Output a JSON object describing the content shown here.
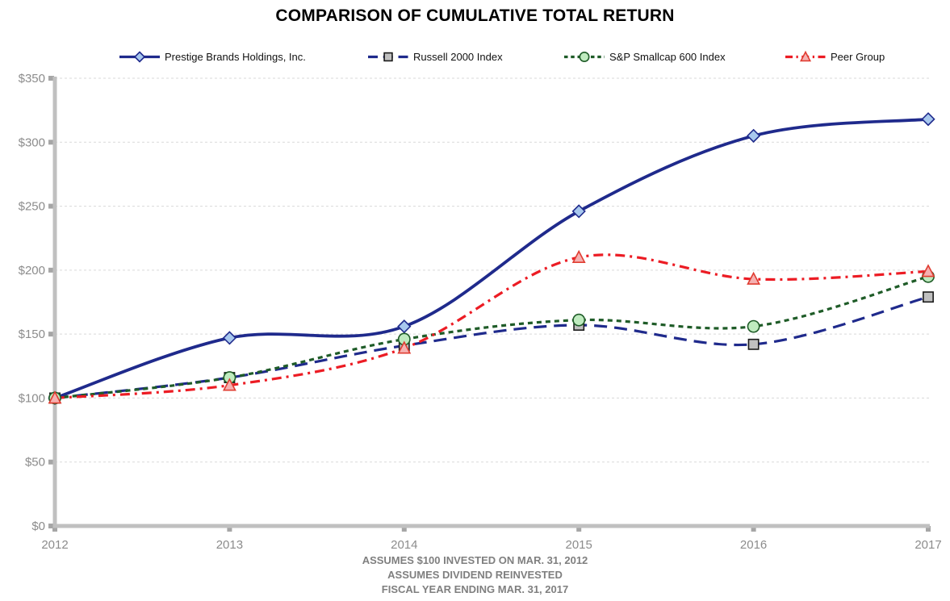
{
  "title": "COMPARISON OF CUMULATIVE TOTAL RETURN",
  "footer": {
    "line1": "ASSUMES $100 INVESTED ON MAR. 31, 2012",
    "line2": "ASSUMES DIVIDEND REINVESTED",
    "line3": "FISCAL YEAR ENDING MAR. 31, 2017"
  },
  "axis": {
    "y_tick_labels": [
      "$0",
      "$50",
      "$100",
      "$150",
      "$200",
      "$250",
      "$300",
      "$350"
    ],
    "x_tick_labels": [
      "2012",
      "2013",
      "2014",
      "2015",
      "2016",
      "2017"
    ],
    "label_color": "#8C8C8C",
    "axis_color": "#C0C0C0",
    "tick_color": "#A6A6A6",
    "gridline_color": "#D9D9D9"
  },
  "chart_data": {
    "type": "line",
    "title": "COMPARISON OF CUMULATIVE TOTAL RETURN",
    "x": [
      2012,
      2013,
      2014,
      2015,
      2016,
      2017
    ],
    "xlabel": "",
    "ylabel": "",
    "ylim": [
      0,
      350
    ],
    "y_tick_step": 50,
    "grid": true,
    "legend_position": "top",
    "smooth_lines": true,
    "series": [
      {
        "name": "Prestige Brands Holdings, Inc.",
        "values": [
          100,
          147,
          156,
          246,
          305,
          318
        ],
        "color": "#1F2A8C",
        "dash": "",
        "marker": "diamond",
        "marker_fill": "#A8C8EE",
        "marker_stroke": "#1F2A8C"
      },
      {
        "name": "Russell 2000 Index",
        "values": [
          100,
          116,
          141,
          157,
          142,
          179
        ],
        "color": "#1F2A8C",
        "dash": "16 9",
        "marker": "square",
        "marker_fill": "#C0C0C0",
        "marker_stroke": "#1A1A1A"
      },
      {
        "name": "S&P Smallcap 600 Index",
        "values": [
          100,
          116,
          146,
          161,
          156,
          195
        ],
        "color": "#1F5C28",
        "dash": "6 5",
        "marker": "circle",
        "marker_fill": "#BFEBBF",
        "marker_stroke": "#1F5C28"
      },
      {
        "name": "Peer Group",
        "values": [
          100,
          110,
          139,
          210,
          193,
          199
        ],
        "color": "#EC1C24",
        "dash": "12 6 3 6",
        "marker": "triangle",
        "marker_fill": "#F5B1B1",
        "marker_stroke": "#E03C31"
      }
    ]
  }
}
